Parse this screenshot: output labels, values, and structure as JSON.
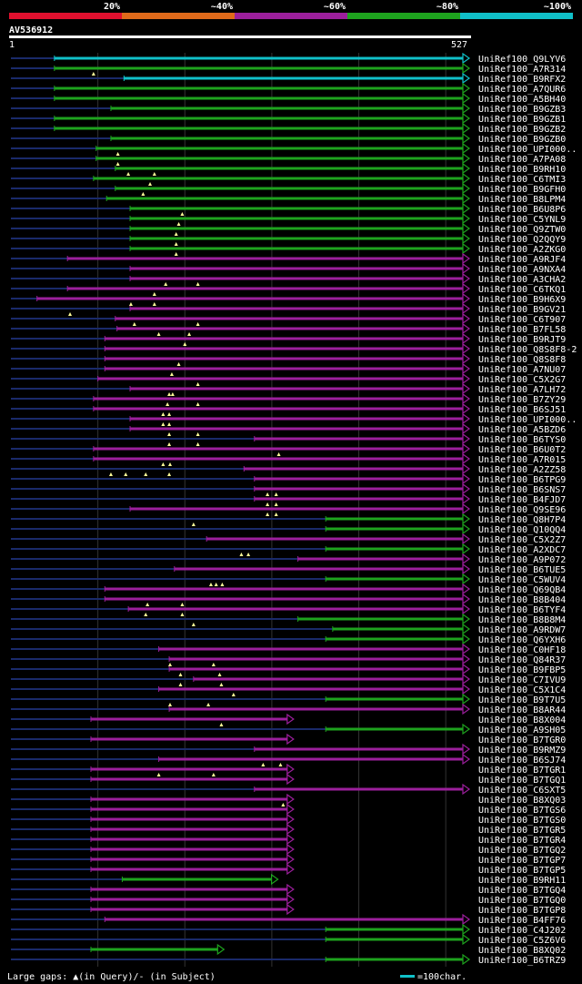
{
  "colors": {
    "background": "#000000",
    "red": "#e0102e",
    "orange": "#e06a1a",
    "purple": "#9c1f9c",
    "green": "#1ea31e",
    "cyan": "#10c0c8",
    "gap": "#1a2a6a",
    "grid": "#333333",
    "marker": "#ffff99"
  },
  "legend": [
    {
      "label": "20%",
      "color": "red"
    },
    {
      "label": "~40%",
      "color": "orange"
    },
    {
      "label": "~60%",
      "color": "purple"
    },
    {
      "label": "~80%",
      "color": "green"
    },
    {
      "label": "~100%",
      "color": "cyan"
    }
  ],
  "query": {
    "id": "AV536912",
    "start": "1",
    "end": "527"
  },
  "footer": {
    "gaps_text": "Large gaps: ▲(in Query)/- (in Subject)",
    "scale_text": "=100char."
  },
  "chart_data": {
    "type": "alignment",
    "query_length": 527,
    "title": "AV536912",
    "rows": [
      {
        "name": "UniRef100_Q9LYV6",
        "color": "cyan",
        "start": 50,
        "end": 527,
        "arrow": true,
        "marks": []
      },
      {
        "name": "UniRef100_A7R314",
        "color": "green",
        "start": 50,
        "end": 527,
        "arrow": true,
        "marks": [
          95
        ]
      },
      {
        "name": "UniRef100_B9RFX2",
        "color": "cyan",
        "start": 130,
        "end": 527,
        "arrow": true,
        "marks": []
      },
      {
        "name": "UniRef100_A7QUR6",
        "color": "green",
        "start": 50,
        "end": 527,
        "arrow": true,
        "marks": []
      },
      {
        "name": "UniRef100_A5BH40",
        "color": "green",
        "start": 50,
        "end": 527,
        "arrow": true,
        "marks": []
      },
      {
        "name": "UniRef100_B9GZB3",
        "color": "green",
        "start": 115,
        "end": 527,
        "arrow": true,
        "marks": []
      },
      {
        "name": "UniRef100_B9GZB1",
        "color": "green",
        "start": 50,
        "end": 527,
        "arrow": true,
        "marks": []
      },
      {
        "name": "UniRef100_B9GZB2",
        "color": "green",
        "start": 50,
        "end": 527,
        "arrow": true,
        "marks": []
      },
      {
        "name": "UniRef100_B9GZB0",
        "color": "green",
        "start": 115,
        "end": 527,
        "arrow": true,
        "marks": []
      },
      {
        "name": "UniRef100_UPI000..",
        "color": "green",
        "start": 98,
        "end": 527,
        "arrow": true,
        "marks": [
          123
        ]
      },
      {
        "name": "UniRef100_A7PA08",
        "color": "green",
        "start": 98,
        "end": 527,
        "arrow": true,
        "marks": [
          123
        ]
      },
      {
        "name": "UniRef100_B9RH10",
        "color": "green",
        "start": 120,
        "end": 527,
        "arrow": true,
        "marks": [
          135,
          165
        ]
      },
      {
        "name": "UniRef100_C6TMI3",
        "color": "green",
        "start": 95,
        "end": 527,
        "arrow": true,
        "marks": [
          160
        ]
      },
      {
        "name": "UniRef100_B9GFH0",
        "color": "green",
        "start": 120,
        "end": 527,
        "arrow": true,
        "marks": [
          152
        ]
      },
      {
        "name": "UniRef100_B8LPM4",
        "color": "green",
        "start": 110,
        "end": 527,
        "arrow": true,
        "marks": []
      },
      {
        "name": "UniRef100_B6U8P6",
        "color": "green",
        "start": 137,
        "end": 527,
        "arrow": true,
        "marks": [
          197
        ]
      },
      {
        "name": "UniRef100_C5YNL9",
        "color": "green",
        "start": 137,
        "end": 527,
        "arrow": true,
        "marks": [
          193
        ]
      },
      {
        "name": "UniRef100_Q9ZTW0",
        "color": "green",
        "start": 137,
        "end": 527,
        "arrow": true,
        "marks": [
          190
        ]
      },
      {
        "name": "UniRef100_Q2QQY9",
        "color": "green",
        "start": 137,
        "end": 527,
        "arrow": true,
        "marks": [
          190
        ]
      },
      {
        "name": "UniRef100_A2ZKG0",
        "color": "green",
        "start": 137,
        "end": 527,
        "arrow": true,
        "marks": [
          190
        ]
      },
      {
        "name": "UniRef100_A9RJF4",
        "color": "purple",
        "start": 65,
        "end": 527,
        "arrow": true,
        "marks": []
      },
      {
        "name": "UniRef100_A9NXA4",
        "color": "purple",
        "start": 137,
        "end": 527,
        "arrow": true,
        "marks": []
      },
      {
        "name": "UniRef100_A3CHA2",
        "color": "purple",
        "start": 137,
        "end": 527,
        "arrow": true,
        "marks": [
          178,
          215
        ]
      },
      {
        "name": "UniRef100_C6TKQ1",
        "color": "purple",
        "start": 65,
        "end": 527,
        "arrow": true,
        "marks": [
          165
        ]
      },
      {
        "name": "UniRef100_B9H6X9",
        "color": "purple",
        "start": 30,
        "end": 527,
        "arrow": true,
        "marks": [
          138,
          165
        ]
      },
      {
        "name": "UniRef100_B9GV21",
        "color": "purple",
        "start": 137,
        "end": 527,
        "arrow": true,
        "marks": [
          68
        ]
      },
      {
        "name": "UniRef100_C6T907",
        "color": "purple",
        "start": 120,
        "end": 527,
        "arrow": true,
        "marks": [
          142,
          215
        ]
      },
      {
        "name": "UniRef100_B7FL58",
        "color": "purple",
        "start": 122,
        "end": 527,
        "arrow": true,
        "marks": [
          170,
          205
        ]
      },
      {
        "name": "UniRef100_B9RJT9",
        "color": "purple",
        "start": 108,
        "end": 527,
        "arrow": true,
        "marks": [
          200
        ]
      },
      {
        "name": "UniRef100_Q8S8F8-2",
        "color": "purple",
        "start": 108,
        "end": 527,
        "arrow": true,
        "marks": []
      },
      {
        "name": "UniRef100_Q8S8F8",
        "color": "purple",
        "start": 108,
        "end": 527,
        "arrow": true,
        "marks": [
          193
        ]
      },
      {
        "name": "UniRef100_A7NU07",
        "color": "purple",
        "start": 108,
        "end": 527,
        "arrow": true,
        "marks": [
          185
        ]
      },
      {
        "name": "UniRef100_C5X2G7",
        "color": "purple",
        "start": 100,
        "end": 527,
        "arrow": true,
        "marks": [
          215
        ]
      },
      {
        "name": "UniRef100_A7LH72",
        "color": "purple",
        "start": 137,
        "end": 527,
        "arrow": true,
        "marks": [
          182,
          186
        ]
      },
      {
        "name": "UniRef100_B7ZY29",
        "color": "purple",
        "start": 95,
        "end": 527,
        "arrow": true,
        "marks": [
          180,
          215
        ]
      },
      {
        "name": "UniRef100_B6SJ51",
        "color": "purple",
        "start": 95,
        "end": 527,
        "arrow": true,
        "marks": [
          175,
          182
        ]
      },
      {
        "name": "UniRef100_UPI000..",
        "color": "purple",
        "start": 137,
        "end": 527,
        "arrow": true,
        "marks": [
          175,
          182
        ]
      },
      {
        "name": "UniRef100_A5BZD6",
        "color": "purple",
        "start": 137,
        "end": 527,
        "arrow": true,
        "marks": [
          182,
          215
        ]
      },
      {
        "name": "UniRef100_B6TYS0",
        "color": "purple",
        "start": 280,
        "end": 527,
        "arrow": true,
        "marks": [
          182,
          215
        ]
      },
      {
        "name": "UniRef100_B6U0T2",
        "color": "purple",
        "start": 95,
        "end": 527,
        "arrow": true,
        "marks": [
          308
        ]
      },
      {
        "name": "UniRef100_A7R015",
        "color": "purple",
        "start": 95,
        "end": 527,
        "arrow": true,
        "marks": [
          175,
          183
        ]
      },
      {
        "name": "UniRef100_A2ZZ58",
        "color": "purple",
        "start": 268,
        "end": 527,
        "arrow": true,
        "marks": [
          115,
          132,
          155,
          182
        ]
      },
      {
        "name": "UniRef100_B6TPG9",
        "color": "purple",
        "start": 280,
        "end": 527,
        "arrow": true,
        "marks": []
      },
      {
        "name": "UniRef100_B6SNS7",
        "color": "purple",
        "start": 280,
        "end": 527,
        "arrow": true,
        "marks": [
          295,
          305
        ]
      },
      {
        "name": "UniRef100_B4FJD7",
        "color": "purple",
        "start": 280,
        "end": 527,
        "arrow": true,
        "marks": [
          295,
          305
        ]
      },
      {
        "name": "UniRef100_Q9SE96",
        "color": "purple",
        "start": 137,
        "end": 527,
        "arrow": true,
        "marks": [
          295,
          305
        ]
      },
      {
        "name": "UniRef100_Q8H7P4",
        "color": "green",
        "start": 362,
        "end": 527,
        "arrow": true,
        "marks": [
          210
        ]
      },
      {
        "name": "UniRef100_Q10QQ4",
        "color": "green",
        "start": 362,
        "end": 527,
        "arrow": true,
        "marks": []
      },
      {
        "name": "UniRef100_C5X2Z7",
        "color": "purple",
        "start": 225,
        "end": 527,
        "arrow": true,
        "marks": []
      },
      {
        "name": "UniRef100_A2XDC7",
        "color": "green",
        "start": 362,
        "end": 527,
        "arrow": true,
        "marks": [
          265,
          273
        ]
      },
      {
        "name": "UniRef100_A9P072",
        "color": "purple",
        "start": 330,
        "end": 527,
        "arrow": true,
        "marks": []
      },
      {
        "name": "UniRef100_B6TUE5",
        "color": "purple",
        "start": 188,
        "end": 527,
        "arrow": true,
        "marks": []
      },
      {
        "name": "UniRef100_C5WUV4",
        "color": "green",
        "start": 362,
        "end": 527,
        "arrow": true,
        "marks": [
          230,
          236,
          243
        ]
      },
      {
        "name": "UniRef100_Q69QB4",
        "color": "purple",
        "start": 108,
        "end": 527,
        "arrow": true,
        "marks": []
      },
      {
        "name": "UniRef100_B8B404",
        "color": "purple",
        "start": 108,
        "end": 527,
        "arrow": true,
        "marks": [
          157,
          197
        ]
      },
      {
        "name": "UniRef100_B6TYF4",
        "color": "purple",
        "start": 135,
        "end": 527,
        "arrow": true,
        "marks": [
          155,
          197
        ]
      },
      {
        "name": "UniRef100_B8B8M4",
        "color": "green",
        "start": 330,
        "end": 527,
        "arrow": true,
        "marks": [
          210
        ]
      },
      {
        "name": "UniRef100_A9RDW7",
        "color": "green",
        "start": 370,
        "end": 527,
        "arrow": true,
        "marks": []
      },
      {
        "name": "UniRef100_Q6YXH6",
        "color": "green",
        "start": 362,
        "end": 527,
        "arrow": true,
        "marks": []
      },
      {
        "name": "UniRef100_C0HF18",
        "color": "purple",
        "start": 170,
        "end": 527,
        "arrow": true,
        "marks": []
      },
      {
        "name": "UniRef100_Q84R37",
        "color": "purple",
        "start": 182,
        "end": 527,
        "arrow": true,
        "marks": [
          183,
          233
        ]
      },
      {
        "name": "UniRef100_B9FBP5",
        "color": "purple",
        "start": 182,
        "end": 527,
        "arrow": true,
        "marks": [
          195,
          240
        ]
      },
      {
        "name": "UniRef100_C7IVU9",
        "color": "purple",
        "start": 210,
        "end": 527,
        "arrow": true,
        "marks": [
          195,
          242
        ]
      },
      {
        "name": "UniRef100_C5X1C4",
        "color": "purple",
        "start": 170,
        "end": 527,
        "arrow": true,
        "marks": [
          256
        ]
      },
      {
        "name": "UniRef100_B9T7U5",
        "color": "green",
        "start": 362,
        "end": 527,
        "arrow": true,
        "marks": [
          183,
          227
        ]
      },
      {
        "name": "UniRef100_B8AR44",
        "color": "purple",
        "start": 182,
        "end": 527,
        "arrow": true,
        "marks": []
      },
      {
        "name": "UniRef100_B8X004",
        "color": "purple",
        "start": 92,
        "end": 325,
        "arrow": true,
        "marks": [
          242
        ]
      },
      {
        "name": "UniRef100_A9SH05",
        "color": "green",
        "start": 362,
        "end": 527,
        "arrow": true,
        "marks": []
      },
      {
        "name": "UniRef100_B7TGR0",
        "color": "purple",
        "start": 92,
        "end": 325,
        "arrow": true,
        "marks": []
      },
      {
        "name": "UniRef100_B9RMZ9",
        "color": "purple",
        "start": 280,
        "end": 527,
        "arrow": true,
        "marks": []
      },
      {
        "name": "UniRef100_B6SJ74",
        "color": "purple",
        "start": 170,
        "end": 527,
        "arrow": true,
        "marks": [
          290,
          310
        ]
      },
      {
        "name": "UniRef100_B7TGR1",
        "color": "purple",
        "start": 92,
        "end": 325,
        "arrow": true,
        "marks": [
          170,
          233
        ]
      },
      {
        "name": "UniRef100_B7TGQ1",
        "color": "purple",
        "start": 92,
        "end": 325,
        "arrow": true,
        "marks": []
      },
      {
        "name": "UniRef100_C6SXT5",
        "color": "purple",
        "start": 280,
        "end": 527,
        "arrow": true,
        "marks": []
      },
      {
        "name": "UniRef100_B8XQ03",
        "color": "purple",
        "start": 92,
        "end": 325,
        "arrow": true,
        "marks": [
          313
        ]
      },
      {
        "name": "UniRef100_B7TGS6",
        "color": "purple",
        "start": 92,
        "end": 325,
        "arrow": true,
        "marks": []
      },
      {
        "name": "UniRef100_B7TGS0",
        "color": "purple",
        "start": 92,
        "end": 325,
        "arrow": true,
        "marks": []
      },
      {
        "name": "UniRef100_B7TGR5",
        "color": "purple",
        "start": 92,
        "end": 325,
        "arrow": true,
        "marks": []
      },
      {
        "name": "UniRef100_B7TGR4",
        "color": "purple",
        "start": 92,
        "end": 325,
        "arrow": true,
        "marks": []
      },
      {
        "name": "UniRef100_B7TGQ2",
        "color": "purple",
        "start": 92,
        "end": 325,
        "arrow": true,
        "marks": []
      },
      {
        "name": "UniRef100_B7TGP7",
        "color": "purple",
        "start": 92,
        "end": 325,
        "arrow": true,
        "marks": []
      },
      {
        "name": "UniRef100_B7TGP5",
        "color": "purple",
        "start": 92,
        "end": 325,
        "arrow": true,
        "marks": []
      },
      {
        "name": "UniRef100_B9RH11",
        "color": "green",
        "start": 128,
        "end": 307,
        "arrow": true,
        "marks": []
      },
      {
        "name": "UniRef100_B7TGQ4",
        "color": "purple",
        "start": 92,
        "end": 325,
        "arrow": true,
        "marks": []
      },
      {
        "name": "UniRef100_B7TGQ0",
        "color": "purple",
        "start": 92,
        "end": 325,
        "arrow": true,
        "marks": []
      },
      {
        "name": "UniRef100_B7TGP8",
        "color": "purple",
        "start": 92,
        "end": 325,
        "arrow": true,
        "marks": []
      },
      {
        "name": "UniRef100_B4FF76",
        "color": "purple",
        "start": 108,
        "end": 527,
        "arrow": true,
        "marks": []
      },
      {
        "name": "UniRef100_C4J202",
        "color": "green",
        "start": 362,
        "end": 527,
        "arrow": true,
        "marks": []
      },
      {
        "name": "UniRef100_C5Z6V6",
        "color": "green",
        "start": 362,
        "end": 527,
        "arrow": true,
        "marks": []
      },
      {
        "name": "UniRef100_B8XQ02",
        "color": "green",
        "start": 92,
        "end": 245,
        "arrow": true,
        "marks": []
      },
      {
        "name": "UniRef100_B6TRZ9",
        "color": "green",
        "start": 362,
        "end": 527,
        "arrow": true,
        "marks": []
      }
    ]
  }
}
